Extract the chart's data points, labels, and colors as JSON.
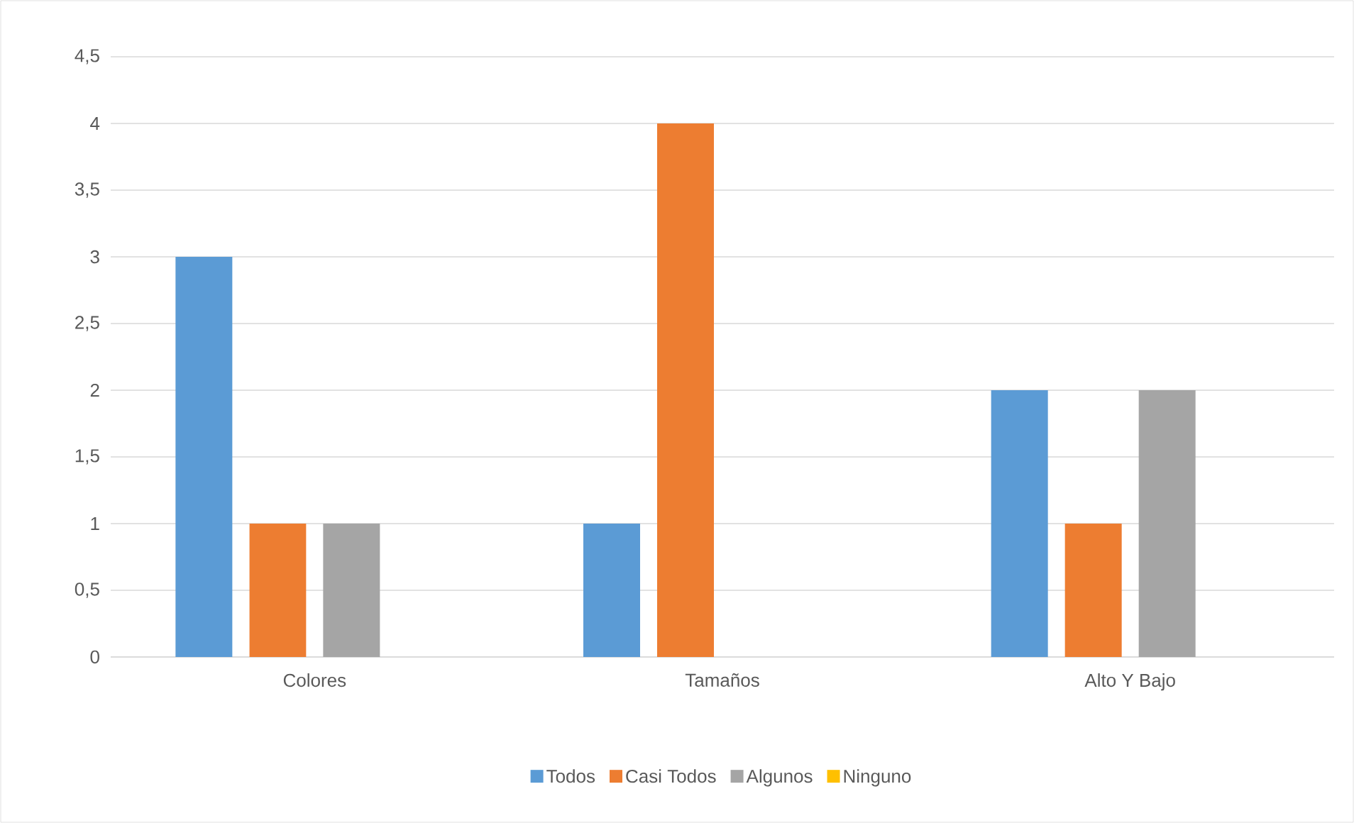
{
  "chart_data": {
    "type": "bar",
    "categories": [
      "Colores",
      "Tamaños",
      "Alto Y Bajo"
    ],
    "series": [
      {
        "name": "Todos",
        "color": "#5b9bd5",
        "values": [
          3,
          1,
          2
        ]
      },
      {
        "name": "Casi Todos",
        "color": "#ed7d31",
        "values": [
          1,
          4,
          1
        ]
      },
      {
        "name": "Algunos",
        "color": "#a5a5a5",
        "values": [
          1,
          0,
          2
        ]
      },
      {
        "name": "Ninguno",
        "color": "#ffc000",
        "values": [
          0,
          0,
          0
        ]
      }
    ],
    "ylim": [
      0,
      4.5
    ],
    "yticks": [
      0,
      {
        "value": 0.5,
        "label": "0,5"
      },
      1,
      {
        "value": 1.5,
        "label": "1,5"
      },
      2,
      {
        "value": 2.5,
        "label": "2,5"
      },
      3,
      {
        "value": 3.5,
        "label": "3,5"
      },
      4,
      {
        "value": 4.5,
        "label": "4,5"
      }
    ],
    "grid": "y",
    "legend": "bottom"
  }
}
